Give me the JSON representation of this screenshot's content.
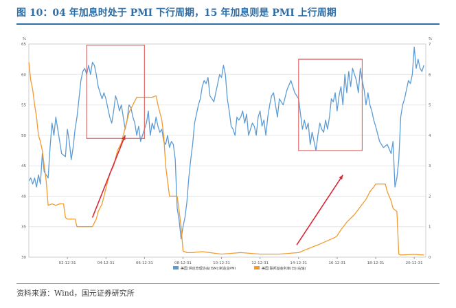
{
  "page": {
    "title": "图 10：04 年加息时处于 PMI 下行周期，15 年加息则是 PMI 上行周期",
    "source": "资料来源：Wind，国元证券研究所"
  },
  "colors": {
    "title_blue": "#2e6ea6",
    "pmi_line": "#5b9bd5",
    "rate_line": "#f39a2e",
    "highlight_box": "#e06666",
    "arrow": "#d62839",
    "grid": "#e6e6e6"
  },
  "chart_data": {
    "type": "line",
    "left_unit": "%",
    "right_unit": "%",
    "ylim_left": [
      30,
      65
    ],
    "ylim_right": [
      0,
      7
    ],
    "left_ticks": [
      "30",
      "35",
      "40",
      "45",
      "50",
      "55",
      "60",
      "65"
    ],
    "right_ticks": [
      "0",
      "1",
      "2",
      "3",
      "4",
      "5",
      "6",
      "7"
    ],
    "x_ticks": [
      "02-12-31",
      "04-12-31",
      "06-12-31",
      "08-12-31",
      "10-12-31",
      "12-12-31",
      "14-12-31",
      "16-12-31",
      "18-12-31",
      "20-12-31"
    ],
    "x_range": [
      2001.0,
      2021.6
    ],
    "legend_position": "bottom-center",
    "series": [
      {
        "name": "美国:供应管理协会(ISM):制造业PMI",
        "axis": "left",
        "x": [
          2001.0,
          2001.1,
          2001.2,
          2001.3,
          2001.4,
          2001.5,
          2001.6,
          2001.7,
          2001.8,
          2002.0,
          2002.1,
          2002.2,
          2002.3,
          2002.4,
          2002.5,
          2002.6,
          2002.7,
          2002.9,
          2003.0,
          2003.1,
          2003.2,
          2003.3,
          2003.4,
          2003.5,
          2003.6,
          2003.7,
          2003.8,
          2003.9,
          2004.0,
          2004.1,
          2004.2,
          2004.3,
          2004.4,
          2004.5,
          2004.6,
          2004.7,
          2004.8,
          2004.9,
          2005.0,
          2005.2,
          2005.3,
          2005.4,
          2005.5,
          2005.6,
          2005.7,
          2005.8,
          2005.9,
          2006.0,
          2006.1,
          2006.2,
          2006.3,
          2006.4,
          2006.5,
          2006.6,
          2006.7,
          2006.8,
          2006.9,
          2007.0,
          2007.1,
          2007.2,
          2007.3,
          2007.4,
          2007.5,
          2007.6,
          2007.7,
          2007.8,
          2007.9,
          2008.0,
          2008.1,
          2008.2,
          2008.3,
          2008.4,
          2008.5,
          2008.6,
          2008.7,
          2008.8,
          2008.9,
          2009.0,
          2009.1,
          2009.2,
          2009.3,
          2009.4,
          2009.5,
          2009.6,
          2009.7,
          2009.8,
          2009.9,
          2010.0,
          2010.1,
          2010.2,
          2010.3,
          2010.4,
          2010.5,
          2010.6,
          2010.7,
          2010.8,
          2010.9,
          2011.0,
          2011.1,
          2011.2,
          2011.3,
          2011.4,
          2011.5,
          2011.6,
          2011.7,
          2011.8,
          2011.9,
          2012.0,
          2012.1,
          2012.2,
          2012.3,
          2012.4,
          2012.5,
          2012.6,
          2012.7,
          2012.8,
          2012.9,
          2013.0,
          2013.1,
          2013.2,
          2013.3,
          2013.4,
          2013.5,
          2013.6,
          2013.7,
          2013.8,
          2013.9,
          2014.0,
          2014.2,
          2014.4,
          2014.6,
          2014.8,
          2015.0,
          2015.1,
          2015.2,
          2015.3,
          2015.4,
          2015.5,
          2015.6,
          2015.7,
          2015.8,
          2015.9,
          2016.0,
          2016.1,
          2016.2,
          2016.3,
          2016.4,
          2016.5,
          2016.6,
          2016.7,
          2016.8,
          2016.9,
          2017.0,
          2017.1,
          2017.2,
          2017.3,
          2017.4,
          2017.5,
          2017.6,
          2017.7,
          2017.8,
          2017.9,
          2018.0,
          2018.1,
          2018.2,
          2018.3,
          2018.4,
          2018.5,
          2018.6,
          2018.7,
          2018.8,
          2018.9,
          2019.0,
          2019.2,
          2019.4,
          2019.6,
          2019.8,
          2019.9,
          2020.0,
          2020.1,
          2020.2,
          2020.3,
          2020.4,
          2020.5,
          2020.6,
          2020.7,
          2020.8,
          2020.9,
          2021.0,
          2021.1,
          2021.2,
          2021.3,
          2021.4,
          2021.5
        ],
        "values": [
          42.5,
          43.0,
          42.0,
          43.0,
          41.5,
          43.5,
          42.0,
          47.0,
          44.0,
          43.0,
          48.0,
          52.0,
          50.0,
          53.0,
          51.0,
          49.0,
          47.0,
          46.5,
          51.0,
          49.0,
          46.0,
          48.0,
          51.0,
          53.0,
          56.0,
          59.0,
          60.5,
          61.0,
          60.0,
          61.5,
          60.0,
          62.0,
          61.5,
          60.0,
          58.0,
          57.0,
          56.0,
          57.0,
          56.0,
          53.0,
          52.0,
          54.0,
          56.5,
          55.5,
          54.0,
          55.0,
          53.0,
          51.0,
          52.5,
          55.0,
          54.5,
          53.0,
          52.0,
          50.0,
          51.5,
          49.0,
          50.0,
          51.0,
          52.0,
          54.0,
          50.0,
          52.0,
          51.0,
          53.0,
          51.5,
          50.5,
          51.0,
          49.0,
          48.5,
          50.0,
          48.0,
          49.0,
          48.5,
          46.0,
          38.0,
          36.0,
          33.0,
          35.0,
          36.5,
          39.0,
          43.0,
          46.0,
          48.5,
          52.0,
          53.5,
          55.0,
          56.0,
          58.0,
          59.0,
          58.5,
          59.5,
          56.5,
          56.0,
          55.5,
          57.0,
          58.5,
          60.0,
          59.5,
          61.5,
          60.0,
          56.0,
          54.0,
          51.5,
          51.0,
          50.0,
          53.0,
          52.5,
          53.0,
          54.0,
          52.0,
          53.5,
          50.0,
          51.0,
          52.0,
          51.5,
          50.0,
          53.0,
          54.0,
          51.5,
          52.5,
          50.0,
          53.0,
          55.0,
          56.5,
          57.0,
          55.0,
          53.0,
          56.0,
          55.0,
          57.5,
          59.0,
          57.0,
          56.0,
          53.5,
          51.0,
          52.5,
          51.0,
          52.0,
          48.5,
          50.5,
          49.0,
          47.5,
          50.0,
          52.0,
          51.0,
          50.5,
          52.5,
          51.0,
          53.0,
          56.0,
          55.5,
          57.0,
          54.0,
          56.5,
          58.0,
          55.0,
          60.0,
          57.0,
          60.5,
          58.0,
          61.0,
          60.0,
          59.0,
          57.0,
          61.0,
          59.0,
          57.5,
          55.0,
          57.0,
          55.0,
          54.0,
          52.5,
          51.5,
          49.0,
          48.0,
          48.5,
          47.0,
          49.0,
          41.5,
          43.0,
          46.0,
          53.0,
          55.0,
          56.0,
          57.5,
          59.0,
          58.5,
          60.0,
          64.5,
          61.0,
          62.5,
          61.0,
          60.5,
          61.5
        ]
      },
      {
        "name": "美国:联邦基金利率(日)(右轴)",
        "axis": "right",
        "x": [
          2001.0,
          2001.1,
          2001.2,
          2001.3,
          2001.4,
          2001.5,
          2001.6,
          2001.7,
          2001.8,
          2001.9,
          2002.0,
          2002.2,
          2002.4,
          2002.6,
          2002.8,
          2002.9,
          2003.0,
          2003.2,
          2003.4,
          2003.5,
          2003.7,
          2003.9,
          2004.0,
          2004.3,
          2004.5,
          2004.6,
          2004.8,
          2005.0,
          2005.2,
          2005.4,
          2005.6,
          2005.8,
          2006.0,
          2006.2,
          2006.4,
          2006.6,
          2006.8,
          2007.0,
          2007.2,
          2007.4,
          2007.6,
          2007.7,
          2007.8,
          2007.9,
          2008.0,
          2008.1,
          2008.2,
          2008.3,
          2008.5,
          2008.7,
          2008.8,
          2008.9,
          2009.0,
          2009.2,
          2009.5,
          2010.0,
          2011.0,
          2012.0,
          2013.0,
          2014.0,
          2015.0,
          2015.9,
          2016.0,
          2016.9,
          2017.0,
          2017.2,
          2017.5,
          2017.9,
          2018.2,
          2018.5,
          2018.7,
          2018.9,
          2019.0,
          2019.3,
          2019.5,
          2019.6,
          2019.8,
          2019.9,
          2020.0,
          2020.1,
          2020.2,
          2020.3,
          2020.5,
          2021.0,
          2021.5
        ],
        "values": [
          6.4,
          5.8,
          5.5,
          5.0,
          4.6,
          4.0,
          3.8,
          3.5,
          3.0,
          2.5,
          1.7,
          1.75,
          1.7,
          1.75,
          1.75,
          1.3,
          1.25,
          1.25,
          1.25,
          1.0,
          1.0,
          1.0,
          1.0,
          1.0,
          1.25,
          1.5,
          1.75,
          2.25,
          2.75,
          3.0,
          3.5,
          3.75,
          4.25,
          4.75,
          5.0,
          5.25,
          5.25,
          5.25,
          5.25,
          5.25,
          5.3,
          5.0,
          4.75,
          4.5,
          4.0,
          3.0,
          2.5,
          2.0,
          2.0,
          2.0,
          1.5,
          1.0,
          0.2,
          0.15,
          0.15,
          0.18,
          0.1,
          0.15,
          0.1,
          0.1,
          0.15,
          0.38,
          0.4,
          0.65,
          0.7,
          0.9,
          1.15,
          1.4,
          1.65,
          1.9,
          2.15,
          2.3,
          2.4,
          2.4,
          2.4,
          2.15,
          1.85,
          1.6,
          1.55,
          1.5,
          0.1,
          0.07,
          0.08,
          0.09,
          0.07
        ]
      }
    ],
    "annotations": [
      {
        "type": "box",
        "x": [
          2004.0,
          2007.0
        ],
        "y_left": [
          49.5,
          64.8
        ]
      },
      {
        "type": "box",
        "x": [
          2015.0,
          2018.3
        ],
        "y_left": [
          47.5,
          62.5
        ]
      },
      {
        "type": "arrow",
        "from": [
          2004.3,
          36.5
        ],
        "to": [
          2006.0,
          50.0
        ]
      },
      {
        "type": "arrow",
        "from": [
          2014.9,
          32.0
        ],
        "to": [
          2017.3,
          43.5
        ]
      }
    ]
  }
}
